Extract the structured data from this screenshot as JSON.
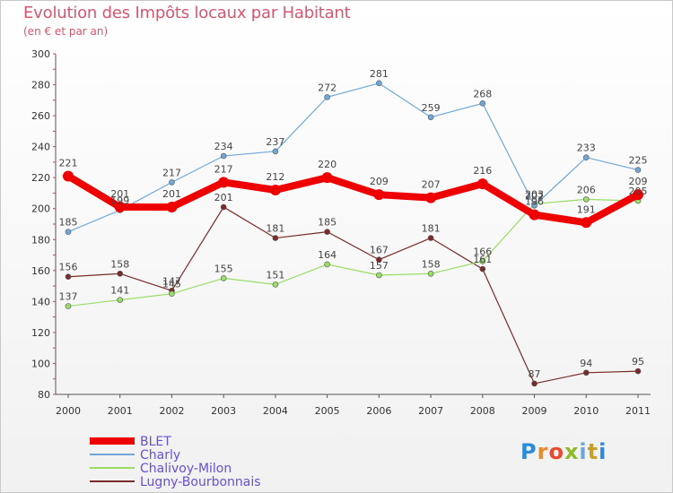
{
  "header": {
    "title": "Evolution des Impôts locaux par Habitant",
    "subtitle": "(en € et par an)"
  },
  "logo": {
    "text": "Proxiti",
    "letters": [
      "P",
      "r",
      "o",
      "x",
      "i",
      "t",
      "i"
    ]
  },
  "chart_data": {
    "type": "line",
    "title": "Evolution des Impôts locaux par Habitant",
    "subtitle": "(en € et par an)",
    "xlabel": "",
    "ylabel": "",
    "x": [
      "2000",
      "2001",
      "2002",
      "2003",
      "2004",
      "2005",
      "2006",
      "2007",
      "2008",
      "2009",
      "2010",
      "2011"
    ],
    "ylim": [
      80,
      300
    ],
    "yticks": [
      80,
      100,
      120,
      140,
      160,
      180,
      200,
      220,
      240,
      260,
      280,
      300
    ],
    "grid": false,
    "legend_position": "bottom-left",
    "series": [
      {
        "name": "BLET",
        "color": "#ee0000",
        "values": [
          221,
          201,
          201,
          217,
          212,
          220,
          209,
          207,
          216,
          196,
          191,
          209
        ]
      },
      {
        "name": "Charly",
        "color": "#6fa8d8",
        "values": [
          185,
          199,
          217,
          234,
          237,
          272,
          281,
          259,
          268,
          202,
          233,
          225
        ]
      },
      {
        "name": "Chalivoy-Milon",
        "color": "#99dd66",
        "values": [
          137,
          141,
          145,
          155,
          151,
          164,
          157,
          158,
          166,
          203,
          206,
          205
        ]
      },
      {
        "name": "Lugny-Bourbonnais",
        "color": "#7a2a2a",
        "values": [
          156,
          158,
          147,
          201,
          181,
          185,
          167,
          181,
          161,
          87,
          94,
          95
        ]
      }
    ]
  }
}
